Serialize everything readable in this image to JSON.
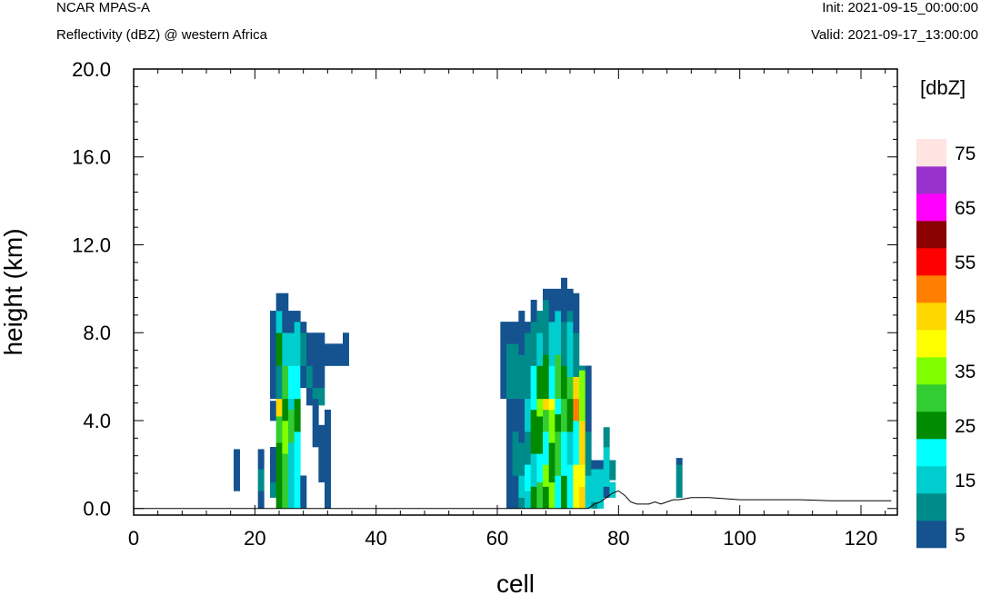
{
  "header": {
    "left_title": "NCAR MPAS-A",
    "left_subtitle": "Reflectivity (dBZ) @ western Africa",
    "right_init": "Init: 2021-09-15_00:00:00",
    "right_valid": "Valid: 2021-09-17_13:00:00"
  },
  "chart_data": {
    "type": "heatmap",
    "title": "Reflectivity (dBZ) @ western Africa",
    "xlabel": "cell",
    "ylabel": "height (km)",
    "xlim": [
      0,
      126
    ],
    "ylim": [
      -0.3,
      20.0
    ],
    "x_ticks": [
      "0",
      "20",
      "40",
      "60",
      "80",
      "100",
      "120"
    ],
    "y_ticks": [
      "0.0",
      "4.0",
      "8.0",
      "12.0",
      "16.0",
      "20.0"
    ],
    "colorbar": {
      "unit_label": "[dbZ]",
      "tick_labels": [
        "5",
        "15",
        "25",
        "35",
        "45",
        "55",
        "65",
        "75"
      ],
      "levels": [
        5,
        10,
        15,
        20,
        25,
        30,
        35,
        40,
        45,
        50,
        55,
        60,
        65,
        70,
        75
      ],
      "colors": [
        "#14538f",
        "#008b8b",
        "#00cdcd",
        "#00ffff",
        "#008b00",
        "#32cd32",
        "#7fff00",
        "#ffff00",
        "#ffd700",
        "#ff7f00",
        "#ff0000",
        "#8b0000",
        "#ff00ff",
        "#9932cc",
        "#ffe4e1"
      ]
    },
    "cell_height_km": 0.5,
    "columns": [
      {
        "x": 17,
        "cells": [
          [
            0.8,
            2.7,
            5
          ]
        ]
      },
      {
        "x": 21,
        "cells": [
          [
            0.0,
            0.8,
            5
          ],
          [
            0.8,
            1.8,
            10
          ],
          [
            1.8,
            2.7,
            5
          ]
        ]
      },
      {
        "x": 23,
        "cells": [
          [
            0.5,
            1.2,
            10
          ],
          [
            1.2,
            2.8,
            5
          ],
          [
            4.0,
            4.9,
            5
          ],
          [
            5.0,
            6.4,
            5
          ],
          [
            6.4,
            9.0,
            5
          ]
        ]
      },
      {
        "x": 24,
        "cells": [
          [
            0.0,
            3.0,
            25
          ],
          [
            3.0,
            4.2,
            30
          ],
          [
            4.2,
            5.0,
            45
          ],
          [
            5.0,
            6.5,
            10
          ],
          [
            6.5,
            8.0,
            25
          ],
          [
            8.0,
            9.0,
            15
          ],
          [
            9.0,
            9.8,
            5
          ]
        ]
      },
      {
        "x": 25,
        "cells": [
          [
            0.0,
            2.5,
            30
          ],
          [
            2.5,
            4.0,
            35
          ],
          [
            4.0,
            5.0,
            25
          ],
          [
            5.0,
            6.5,
            30
          ],
          [
            6.5,
            8.0,
            15
          ],
          [
            8.0,
            9.8,
            5
          ]
        ]
      },
      {
        "x": 26,
        "cells": [
          [
            0.0,
            3.0,
            15
          ],
          [
            3.0,
            4.5,
            30
          ],
          [
            4.5,
            5.0,
            15
          ],
          [
            5.0,
            6.5,
            20
          ],
          [
            6.5,
            8.0,
            15
          ],
          [
            8.0,
            9.0,
            5
          ]
        ]
      },
      {
        "x": 27,
        "cells": [
          [
            0.0,
            3.5,
            20
          ],
          [
            3.5,
            5.0,
            25
          ],
          [
            5.0,
            6.5,
            20
          ],
          [
            6.5,
            8.5,
            15
          ],
          [
            8.5,
            9.0,
            5
          ]
        ]
      },
      {
        "x": 28,
        "cells": [
          [
            0.0,
            1.5,
            5
          ],
          [
            5.5,
            6.5,
            5
          ],
          [
            6.5,
            8.0,
            10
          ],
          [
            8.0,
            8.5,
            5
          ]
        ]
      },
      {
        "x": 29,
        "cells": [
          [
            4.7,
            5.5,
            5
          ],
          [
            5.5,
            6.5,
            10
          ],
          [
            6.5,
            8.0,
            5
          ]
        ]
      },
      {
        "x": 30,
        "cells": [
          [
            2.8,
            5.0,
            5
          ],
          [
            5.0,
            5.5,
            10
          ],
          [
            5.5,
            8.0,
            5
          ]
        ]
      },
      {
        "x": 31,
        "cells": [
          [
            1.2,
            3.8,
            5
          ],
          [
            4.7,
            5.5,
            10
          ],
          [
            5.5,
            8.0,
            5
          ]
        ]
      },
      {
        "x": 32,
        "cells": [
          [
            0.0,
            4.5,
            5
          ],
          [
            6.5,
            7.5,
            5
          ]
        ]
      },
      {
        "x": 33,
        "cells": [
          [
            6.5,
            7.5,
            5
          ]
        ]
      },
      {
        "x": 34,
        "cells": [
          [
            6.5,
            7.5,
            5
          ]
        ]
      },
      {
        "x": 35,
        "cells": [
          [
            6.5,
            8.0,
            5
          ]
        ]
      },
      {
        "x": 61,
        "cells": [
          [
            5.0,
            8.5,
            5
          ]
        ]
      },
      {
        "x": 62,
        "cells": [
          [
            0.0,
            3.5,
            5
          ],
          [
            3.5,
            5.0,
            5
          ],
          [
            5.0,
            7.5,
            10
          ],
          [
            7.5,
            8.5,
            5
          ]
        ]
      },
      {
        "x": 63,
        "cells": [
          [
            0.0,
            1.5,
            5
          ],
          [
            1.5,
            3.5,
            10
          ],
          [
            3.5,
            5.0,
            5
          ],
          [
            5.0,
            7.5,
            10
          ],
          [
            7.5,
            8.5,
            5
          ]
        ]
      },
      {
        "x": 64,
        "cells": [
          [
            0.0,
            0.5,
            10
          ],
          [
            0.5,
            1.5,
            15
          ],
          [
            1.5,
            3.0,
            10
          ],
          [
            3.0,
            5.0,
            5
          ],
          [
            5.0,
            7.0,
            10
          ],
          [
            7.0,
            9.0,
            5
          ]
        ]
      },
      {
        "x": 65,
        "cells": [
          [
            0.0,
            0.8,
            15
          ],
          [
            0.8,
            2.0,
            20
          ],
          [
            2.0,
            3.5,
            10
          ],
          [
            3.5,
            5.0,
            15
          ],
          [
            5.0,
            8.0,
            10
          ],
          [
            8.0,
            8.5,
            5
          ]
        ]
      },
      {
        "x": 66,
        "cells": [
          [
            0.0,
            1.0,
            25
          ],
          [
            1.0,
            2.5,
            15
          ],
          [
            2.5,
            4.5,
            25
          ],
          [
            4.5,
            6.5,
            20
          ],
          [
            6.5,
            8.5,
            10
          ],
          [
            8.5,
            9.5,
            5
          ]
        ]
      },
      {
        "x": 67,
        "cells": [
          [
            0.0,
            1.2,
            30
          ],
          [
            1.2,
            2.5,
            20
          ],
          [
            2.5,
            4.2,
            25
          ],
          [
            4.2,
            5.0,
            35
          ],
          [
            5.0,
            6.5,
            25
          ],
          [
            6.5,
            8.0,
            15
          ],
          [
            8.0,
            9.0,
            10
          ]
        ]
      },
      {
        "x": 68,
        "cells": [
          [
            0.0,
            1.0,
            25
          ],
          [
            1.0,
            2.0,
            35
          ],
          [
            2.0,
            3.5,
            20
          ],
          [
            3.5,
            4.5,
            30
          ],
          [
            4.5,
            5.0,
            45
          ],
          [
            5.0,
            7.0,
            25
          ],
          [
            7.0,
            9.5,
            10
          ],
          [
            9.5,
            10.0,
            5
          ]
        ]
      },
      {
        "x": 69,
        "cells": [
          [
            0.0,
            1.2,
            35
          ],
          [
            1.2,
            3.0,
            25
          ],
          [
            3.0,
            4.5,
            35
          ],
          [
            4.5,
            5.0,
            40
          ],
          [
            5.0,
            6.5,
            20
          ],
          [
            6.5,
            8.5,
            15
          ],
          [
            8.5,
            10.0,
            5
          ]
        ]
      },
      {
        "x": 70,
        "cells": [
          [
            0.0,
            1.5,
            20
          ],
          [
            1.5,
            3.5,
            30
          ],
          [
            3.5,
            4.3,
            25
          ],
          [
            4.3,
            5.0,
            20
          ],
          [
            5.0,
            7.0,
            30
          ],
          [
            7.0,
            9.0,
            15
          ],
          [
            9.0,
            10.0,
            5
          ]
        ]
      },
      {
        "x": 71,
        "cells": [
          [
            0.0,
            1.5,
            25
          ],
          [
            1.5,
            3.5,
            20
          ],
          [
            3.5,
            5.0,
            30
          ],
          [
            5.0,
            6.5,
            25
          ],
          [
            6.5,
            8.5,
            10
          ],
          [
            8.5,
            10.5,
            5
          ]
        ]
      },
      {
        "x": 72,
        "cells": [
          [
            0.0,
            2.0,
            20
          ],
          [
            2.0,
            3.5,
            15
          ],
          [
            3.5,
            5.0,
            25
          ],
          [
            5.0,
            6.0,
            30
          ],
          [
            6.0,
            8.5,
            15
          ],
          [
            8.5,
            9.0,
            10
          ],
          [
            9.0,
            10.0,
            5
          ]
        ]
      },
      {
        "x": 73,
        "cells": [
          [
            0.0,
            2.0,
            40
          ],
          [
            2.0,
            4.0,
            20
          ],
          [
            4.0,
            5.0,
            50
          ],
          [
            5.0,
            6.0,
            45
          ],
          [
            6.0,
            8.0,
            10
          ],
          [
            8.0,
            9.8,
            5
          ]
        ]
      },
      {
        "x": 74,
        "cells": [
          [
            0.0,
            1.0,
            45
          ],
          [
            1.0,
            2.0,
            40
          ],
          [
            2.0,
            4.0,
            45
          ],
          [
            4.0,
            6.3,
            35
          ],
          [
            6.3,
            6.5,
            10
          ]
        ]
      },
      {
        "x": 75,
        "cells": [
          [
            0.0,
            1.5,
            15
          ],
          [
            1.5,
            3.5,
            10
          ],
          [
            3.5,
            5.0,
            5
          ],
          [
            5.0,
            6.5,
            5
          ]
        ]
      },
      {
        "x": 76,
        "cells": [
          [
            0.0,
            0.3,
            10
          ],
          [
            0.3,
            1.8,
            15
          ],
          [
            1.8,
            2.2,
            5
          ]
        ]
      },
      {
        "x": 77,
        "cells": [
          [
            0.0,
            0.5,
            15
          ],
          [
            0.5,
            1.8,
            15
          ],
          [
            1.8,
            2.2,
            5
          ]
        ]
      },
      {
        "x": 78,
        "cells": [
          [
            0.5,
            1.0,
            5
          ],
          [
            1.0,
            2.8,
            15
          ],
          [
            2.8,
            3.7,
            10
          ]
        ]
      },
      {
        "x": 79,
        "cells": [
          [
            0.5,
            1.2,
            15
          ],
          [
            1.3,
            2.2,
            10
          ]
        ]
      },
      {
        "x": 90,
        "cells": [
          [
            0.5,
            2.0,
            10
          ],
          [
            2.0,
            2.3,
            5
          ]
        ]
      }
    ],
    "terrain": [
      [
        0,
        0
      ],
      [
        75,
        0
      ],
      [
        76,
        0.2
      ],
      [
        77,
        0.3
      ],
      [
        78,
        0.5
      ],
      [
        79,
        0.7
      ],
      [
        80,
        0.8
      ],
      [
        81,
        0.6
      ],
      [
        82,
        0.3
      ],
      [
        83,
        0.2
      ],
      [
        84,
        0.2
      ],
      [
        85,
        0.2
      ],
      [
        86,
        0.3
      ],
      [
        87,
        0.2
      ],
      [
        88,
        0.3
      ],
      [
        89,
        0.4
      ],
      [
        90,
        0.4
      ],
      [
        92,
        0.5
      ],
      [
        95,
        0.5
      ],
      [
        100,
        0.4
      ],
      [
        105,
        0.4
      ],
      [
        110,
        0.4
      ],
      [
        115,
        0.35
      ],
      [
        120,
        0.35
      ],
      [
        125,
        0.35
      ]
    ]
  }
}
